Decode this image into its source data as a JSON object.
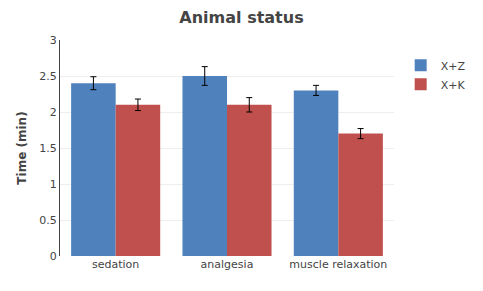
{
  "chart_data": {
    "type": "bar",
    "title": "Animal status",
    "categories": [
      "sedation",
      "analgesia",
      "muscle relaxation"
    ],
    "series": [
      {
        "name": "X+Z",
        "color": "#4F81BD",
        "values": [
          2.4,
          2.5,
          2.3
        ],
        "errors": [
          0.09,
          0.13,
          0.07
        ]
      },
      {
        "name": "X+K",
        "color": "#C0504D",
        "values": [
          2.1,
          2.1,
          1.7
        ],
        "errors": [
          0.08,
          0.1,
          0.07
        ]
      }
    ],
    "ylabel": "Time (min)",
    "ylim": [
      0,
      3.0
    ],
    "yticks": [
      0,
      0.5,
      1,
      1.5,
      2,
      2.5,
      3
    ],
    "grid": true,
    "legend": "right"
  }
}
